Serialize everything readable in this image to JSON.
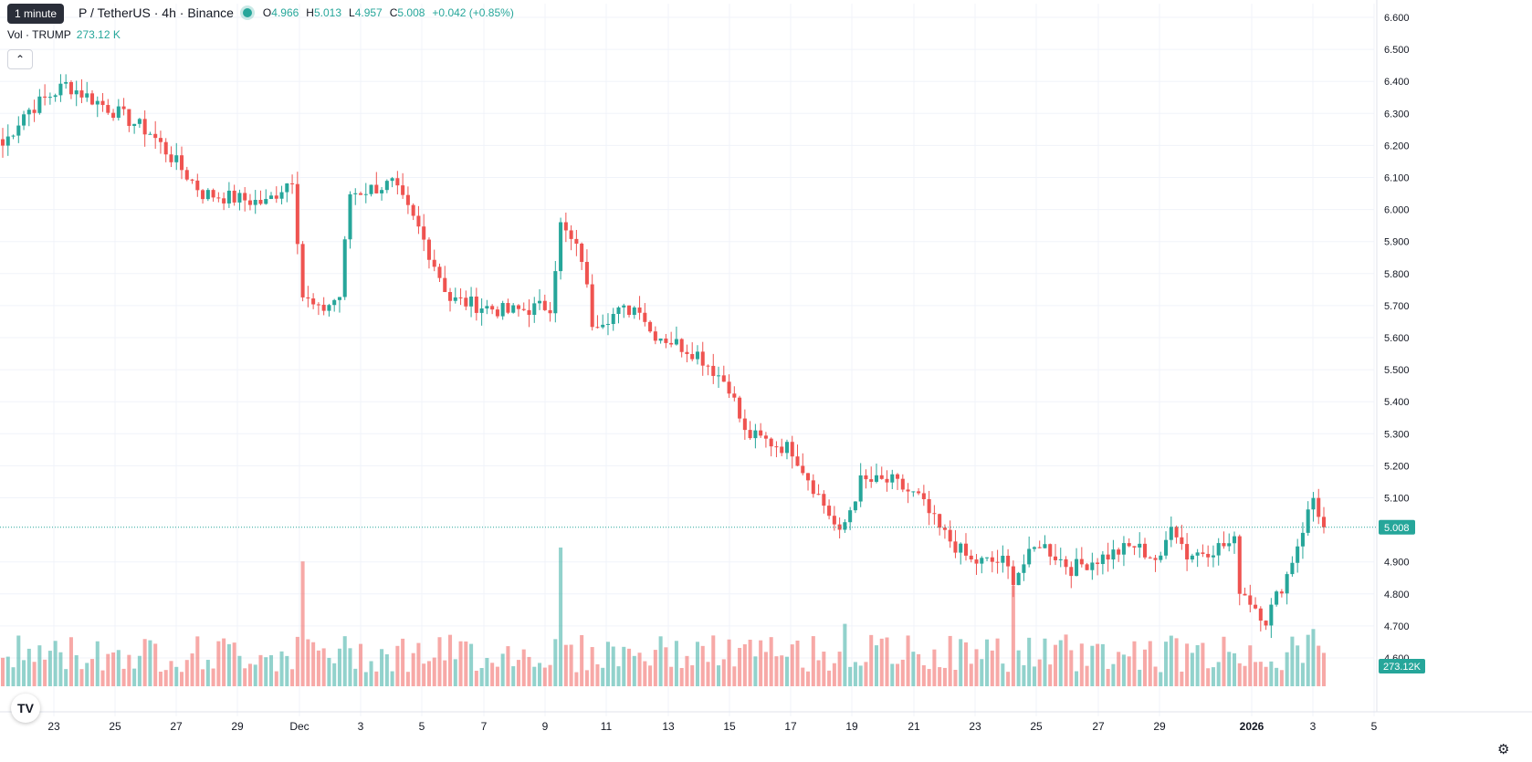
{
  "header": {
    "symbol_visible": "P / TetherUS · 4h · Binance",
    "ohlc": [
      {
        "key": "O",
        "value": "4.966"
      },
      {
        "key": "H",
        "value": "5.013"
      },
      {
        "key": "L",
        "value": "4.957"
      },
      {
        "key": "C",
        "value": "5.008"
      }
    ],
    "change": "+0.042 (+0.85%)",
    "tooltip": "1 minute",
    "volume_label": "Vol · TRUMP",
    "volume_value": "273.12 K",
    "collapse_icon": "chevron-up-icon",
    "up_color": "#26a69a",
    "down_color": "#ef5350"
  },
  "chart_data": {
    "type": "candlestick",
    "interval": "4h",
    "y_axis": {
      "ticks": [
        "6.600",
        "6.500",
        "6.400",
        "6.300",
        "6.200",
        "6.100",
        "6.000",
        "5.900",
        "5.800",
        "5.700",
        "5.600",
        "5.500",
        "5.400",
        "5.300",
        "5.200",
        "5.100",
        "4.900",
        "4.800",
        "4.700",
        "4.600"
      ],
      "ylim": [
        4.55,
        6.62
      ],
      "last_price": "5.008",
      "last_volume": "273.12K"
    },
    "x_axis": {
      "ticks": [
        "23",
        "25",
        "27",
        "29",
        "Dec",
        "3",
        "5",
        "7",
        "9",
        "11",
        "13",
        "15",
        "17",
        "19",
        "21",
        "23",
        "25",
        "27",
        "29",
        "2026",
        "3",
        "5"
      ],
      "bold_ticks": [
        "2026"
      ]
    },
    "grid": true,
    "close_anchors": [
      {
        "bar": 0,
        "close": 6.2
      },
      {
        "bar": 4,
        "close": 6.3
      },
      {
        "bar": 12,
        "close": 6.39
      },
      {
        "bar": 22,
        "close": 6.3
      },
      {
        "bar": 28,
        "close": 6.24
      },
      {
        "bar": 38,
        "close": 6.05
      },
      {
        "bar": 50,
        "close": 6.02
      },
      {
        "bar": 55,
        "close": 6.1
      },
      {
        "bar": 57,
        "close": 5.73
      },
      {
        "bar": 60,
        "close": 5.68
      },
      {
        "bar": 64,
        "close": 5.73
      },
      {
        "bar": 66,
        "close": 6.05
      },
      {
        "bar": 74,
        "close": 6.08
      },
      {
        "bar": 79,
        "close": 5.94
      },
      {
        "bar": 85,
        "close": 5.72
      },
      {
        "bar": 96,
        "close": 5.68
      },
      {
        "bar": 104,
        "close": 5.7
      },
      {
        "bar": 106,
        "close": 5.95
      },
      {
        "bar": 110,
        "close": 5.85
      },
      {
        "bar": 112,
        "close": 5.65
      },
      {
        "bar": 121,
        "close": 5.7
      },
      {
        "bar": 123,
        "close": 5.62
      },
      {
        "bar": 132,
        "close": 5.55
      },
      {
        "bar": 138,
        "close": 5.45
      },
      {
        "bar": 141,
        "close": 5.3
      },
      {
        "bar": 150,
        "close": 5.25
      },
      {
        "bar": 157,
        "close": 5.05
      },
      {
        "bar": 159,
        "close": 4.98
      },
      {
        "bar": 163,
        "close": 5.15
      },
      {
        "bar": 169,
        "close": 5.15
      },
      {
        "bar": 174,
        "close": 5.1
      },
      {
        "bar": 178,
        "close": 5.0
      },
      {
        "bar": 184,
        "close": 4.9
      },
      {
        "bar": 190,
        "close": 4.9
      },
      {
        "bar": 192,
        "close": 4.85
      },
      {
        "bar": 197,
        "close": 4.96
      },
      {
        "bar": 203,
        "close": 4.88
      },
      {
        "bar": 215,
        "close": 4.95
      },
      {
        "bar": 220,
        "close": 4.9
      },
      {
        "bar": 222,
        "close": 5.03
      },
      {
        "bar": 225,
        "close": 4.92
      },
      {
        "bar": 234,
        "close": 4.96
      },
      {
        "bar": 235,
        "close": 4.82
      },
      {
        "bar": 240,
        "close": 4.72
      },
      {
        "bar": 244,
        "close": 4.86
      },
      {
        "bar": 249,
        "close": 5.1
      },
      {
        "bar": 251,
        "close": 5.008
      }
    ],
    "volume_spikes": [
      {
        "bar": 57,
        "volume": 0.72
      },
      {
        "bar": 106,
        "volume": 0.8
      },
      {
        "bar": 192,
        "volume": 0.58
      },
      {
        "bar": 160,
        "volume": 0.36
      },
      {
        "bar": 249,
        "volume": 0.33
      }
    ]
  }
}
